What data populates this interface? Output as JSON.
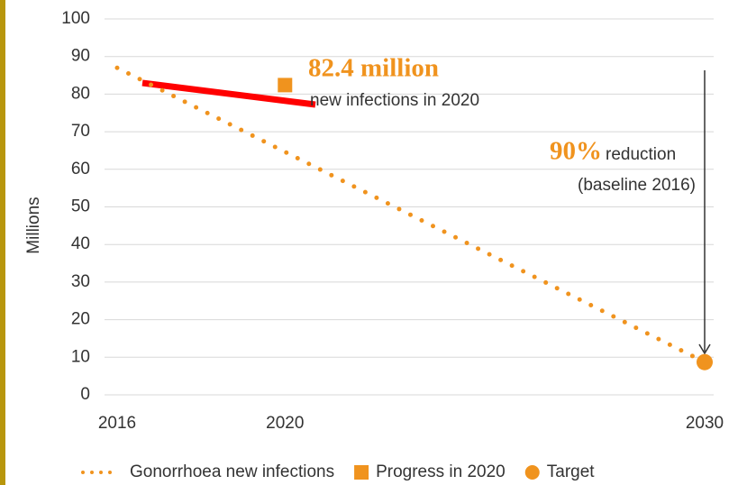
{
  "chart_data": {
    "type": "line",
    "y_label": "Millions",
    "x": [
      2016,
      2020,
      2030
    ],
    "xlim": [
      2016,
      2030
    ],
    "xticks": [
      2016,
      2020,
      2030
    ],
    "ylim": [
      0,
      100
    ],
    "yticks": [
      0,
      10,
      20,
      30,
      40,
      50,
      60,
      70,
      80,
      90,
      100
    ],
    "grid": true,
    "legend": "bottom",
    "series": [
      {
        "name": "Gonorrhoea new infections",
        "color": "#f0931e",
        "style": "dotted",
        "x": [
          2016,
          2030
        ],
        "values": [
          87,
          8.7
        ]
      },
      {
        "name": "Progress in 2020",
        "color": "#f0931e",
        "marker": "square",
        "x": [
          2020
        ],
        "values": [
          82.4
        ]
      },
      {
        "name": "Target",
        "color": "#f0931e",
        "marker": "circle",
        "x": [
          2030
        ],
        "values": [
          8.7
        ]
      }
    ],
    "annotations": [
      {
        "highlight": "82.4 million",
        "text": "new infections in 2020"
      },
      {
        "highlight": "90%",
        "text": "reduction",
        "subtext": "(baseline 2016)"
      }
    ]
  }
}
